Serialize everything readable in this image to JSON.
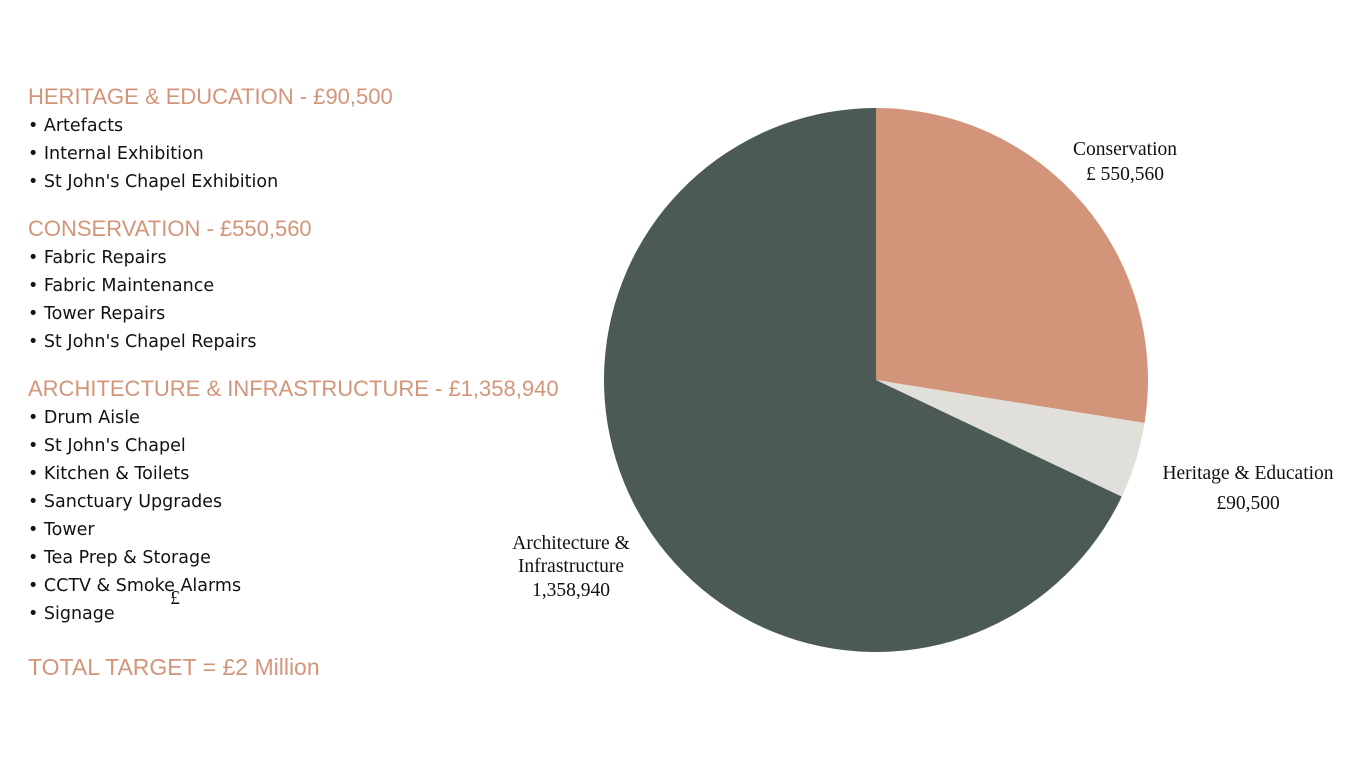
{
  "sections": [
    {
      "heading": "HERITAGE & EDUCATION - £90,500",
      "items": [
        "Artefacts",
        "Internal Exhibition",
        "St John's Chapel Exhibition"
      ]
    },
    {
      "heading": "CONSERVATION - £550,560",
      "items": [
        "Fabric Repairs",
        "Fabric Maintenance",
        "Tower Repairs",
        "St John's Chapel Repairs"
      ]
    },
    {
      "heading": "ARCHITECTURE & INFRASTRUCTURE - £1,358,940",
      "items": [
        "Drum Aisle",
        "St John's Chapel",
        "Kitchen & Toilets",
        "Sanctuary Upgrades",
        "Tower",
        "Tea Prep & Storage",
        "CCTV & Smoke Alarms",
        "Signage"
      ]
    }
  ],
  "total": "TOTAL TARGET = £2 Million",
  "chart_data": {
    "type": "pie",
    "categories": [
      "Conservation",
      "Heritage & Education",
      "Architecture & Infrastructure"
    ],
    "values": [
      550560,
      90500,
      1358940
    ],
    "value_labels": [
      "£ 550,560",
      "£90,500",
      "1,358,940"
    ],
    "colors": [
      "#d39579",
      "#e0dfda",
      "#4b5957"
    ],
    "annotations": [
      "£"
    ]
  }
}
